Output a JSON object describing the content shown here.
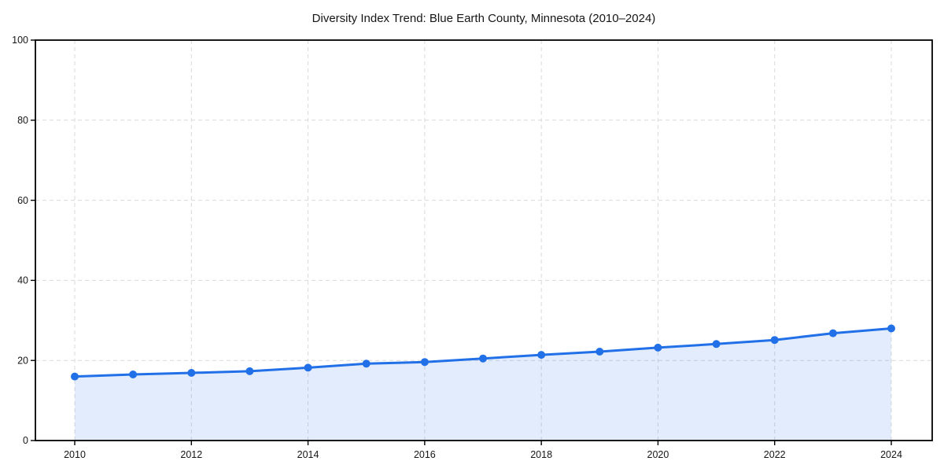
{
  "chart_data": {
    "type": "line",
    "title": "Diversity Index Trend: Blue Earth County, Minnesota (2010–2024)",
    "x": [
      2010,
      2011,
      2012,
      2013,
      2014,
      2015,
      2016,
      2017,
      2018,
      2019,
      2020,
      2021,
      2022,
      2023,
      2024
    ],
    "series": [
      {
        "name": "Diversity Index",
        "values": [
          16.0,
          16.5,
          16.9,
          17.3,
          18.2,
          19.2,
          19.6,
          20.5,
          21.4,
          22.2,
          23.2,
          24.1,
          25.1,
          26.8,
          28.0
        ]
      }
    ],
    "xlabel": "",
    "ylabel": "",
    "ylim": [
      0,
      100
    ],
    "yticks": [
      0,
      20,
      40,
      60,
      80,
      100
    ],
    "xticks": [
      2010,
      2012,
      2014,
      2016,
      2018,
      2020,
      2022,
      2024
    ],
    "grid": true,
    "grid_style": "dashed",
    "legend_position": "none",
    "marker": "circle",
    "area_fill": true,
    "colors": {
      "line": "#2170e8",
      "marker": "#2170e8",
      "fill": "#2170e8",
      "fill_opacity": 0.13,
      "grid": "#d9d9d9",
      "axis": "#000000",
      "text": "#161616",
      "background": "#ffffff"
    }
  }
}
